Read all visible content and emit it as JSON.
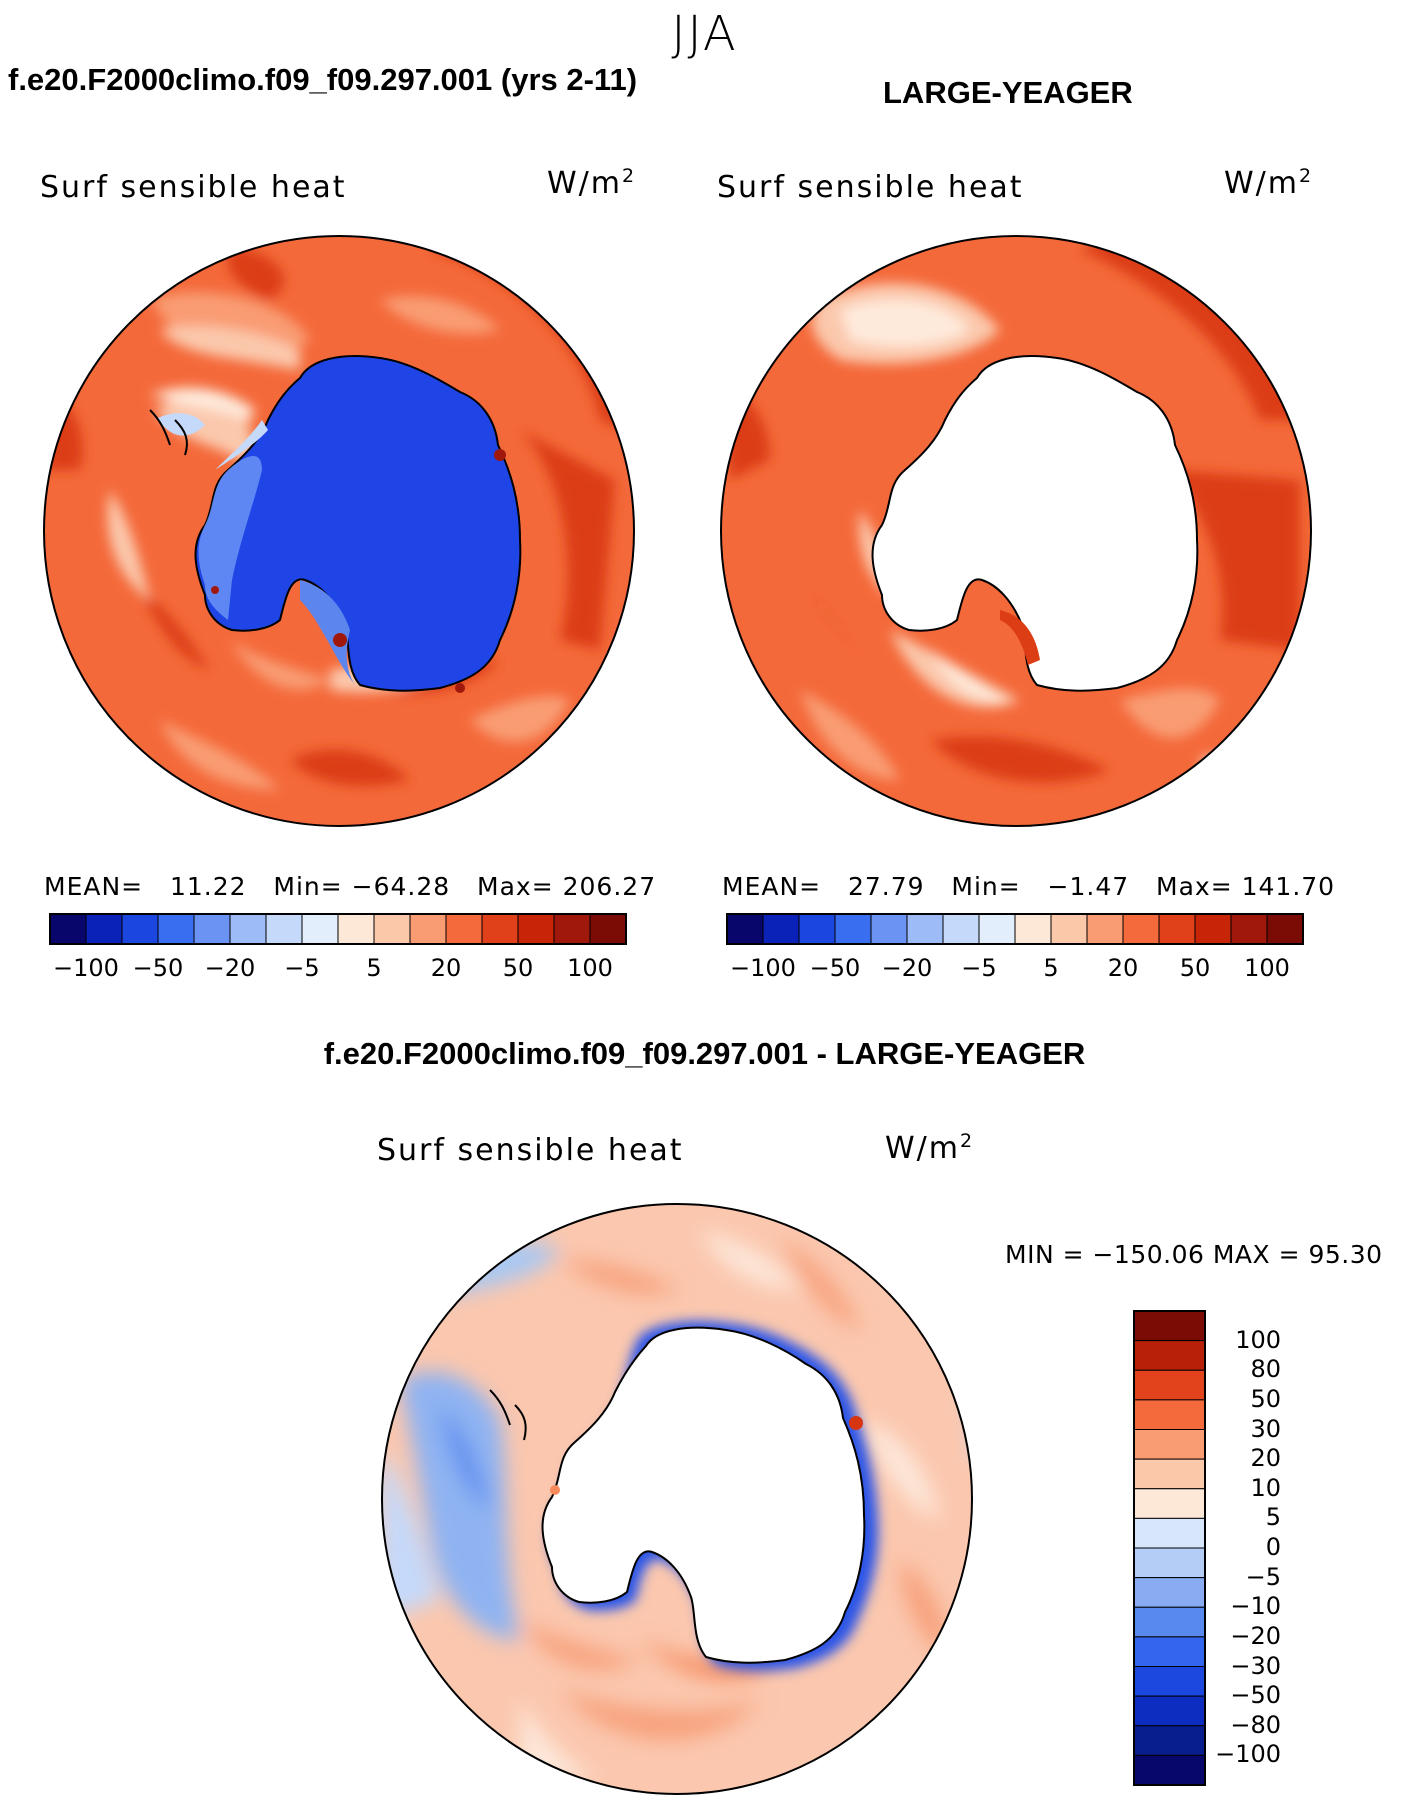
{
  "season": "JJA",
  "colors": {
    "ant_blue": "#1f45e6",
    "ocean_base": "#f4693a",
    "dark_red": "#d6350f",
    "light": "#fbc8ac",
    "pale": "#feeadb",
    "land_outline": "#000000",
    "diff_base": "#fbc7ae",
    "diff_pale": "#fde8da",
    "diff_blue": "#a9c8f3",
    "diff_blue_mid": "#5d8ef0",
    "diff_blue_dark": "#1e46e0"
  },
  "top_panels": [
    {
      "case_title": "f.e20.F2000climo.f09_f09.297.001 (yrs 2-11)",
      "field": "Surf sensible heat",
      "units": "W/m",
      "units_sup": "2",
      "mean_label": "MEAN=",
      "mean_value": "11.22",
      "min_label": "Min=",
      "min_value": "−64.28",
      "max_label": "Max=",
      "max_value": "206.27"
    },
    {
      "case_title": "LARGE-YEAGER",
      "field": "Surf sensible heat",
      "units": "W/m",
      "units_sup": "2",
      "mean_label": "MEAN=",
      "mean_value": "27.79",
      "min_label": "Min=",
      "min_value": "−1.47",
      "max_label": "Max=",
      "max_value": "141.70"
    }
  ],
  "top_colorbar": {
    "colors": [
      "#08066b",
      "#0b22b9",
      "#1b47e0",
      "#3a6ef0",
      "#6b93f4",
      "#9dbcf7",
      "#c5d9fa",
      "#e3eefc",
      "#fde8d8",
      "#fcc8aa",
      "#f99c73",
      "#f46a3d",
      "#e0401a",
      "#c72408",
      "#a0170b",
      "#7b0b05"
    ],
    "ticks": [
      "−100",
      "−50",
      "−20",
      "−5",
      "5",
      "20",
      "50",
      "100"
    ]
  },
  "diff_panel": {
    "title": "f.e20.F2000climo.f09_f09.297.001 - LARGE-YEAGER",
    "field": "Surf sensible heat",
    "units": "W/m",
    "units_sup": "2",
    "minmax_text": "MIN = −150.06 MAX =   95.30"
  },
  "diff_colorbar": {
    "colors": [
      "#7b0b05",
      "#b9200a",
      "#e2421c",
      "#f46a3d",
      "#f99c73",
      "#fcc8aa",
      "#fde8d8",
      "#d7e6fb",
      "#b4cdf7",
      "#88abf2",
      "#5889ee",
      "#3366ec",
      "#1c48e0",
      "#0d2dc1",
      "#081e8e",
      "#07076b"
    ],
    "ticks": [
      "100",
      "80",
      "50",
      "30",
      "20",
      "10",
      "5",
      "0",
      "−5",
      "−10",
      "−20",
      "−30",
      "−50",
      "−80",
      "−100"
    ]
  }
}
